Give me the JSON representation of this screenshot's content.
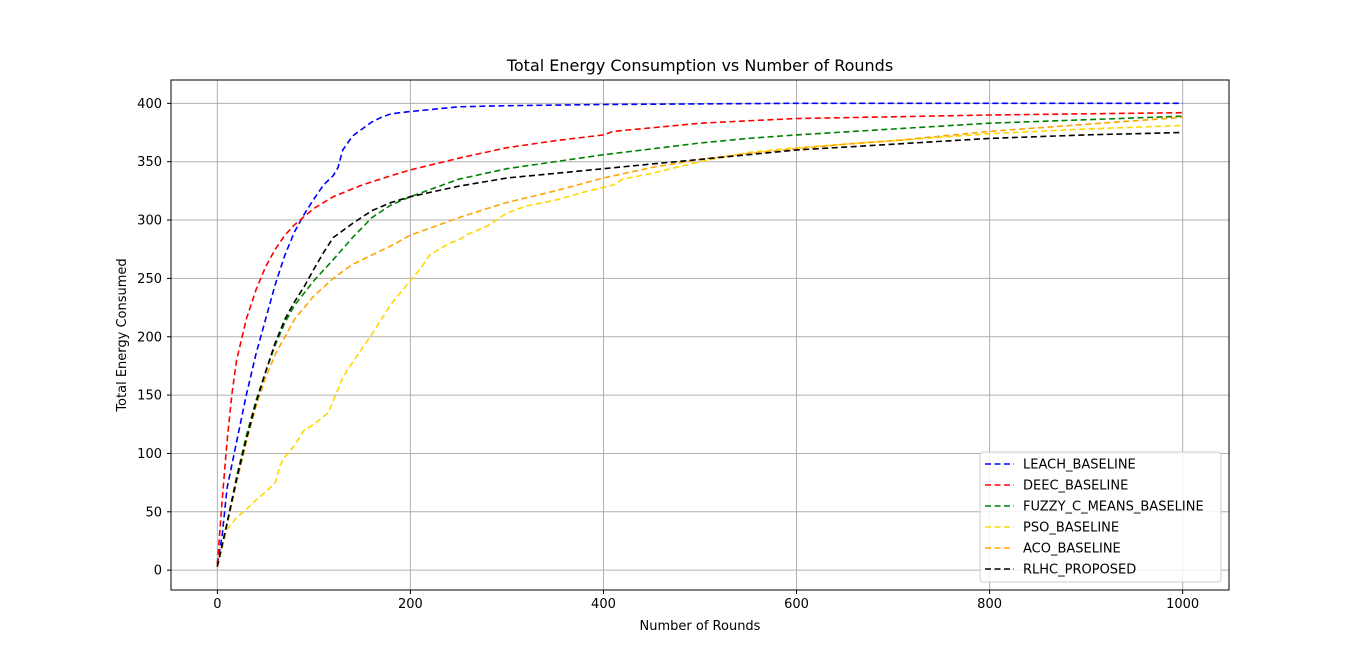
{
  "chart_data": {
    "type": "line",
    "title": "Total Energy Consumption vs Number of Rounds",
    "xlabel": "Number of Rounds",
    "ylabel": "Total Energy Consumed",
    "xlim": [
      -48,
      1048
    ],
    "ylim": [
      -17,
      420
    ],
    "xticks": [
      "0",
      "200",
      "400",
      "600",
      "800",
      "1000"
    ],
    "yticks": [
      "0",
      "50",
      "100",
      "150",
      "200",
      "250",
      "300",
      "350",
      "400"
    ],
    "grid": true,
    "legend_position": "bottom-right",
    "line_style": "dashed",
    "series": [
      {
        "name": "LEACH_BASELINE",
        "color": "#0000ff",
        "points": [
          [
            0,
            5
          ],
          [
            5,
            30
          ],
          [
            10,
            70
          ],
          [
            20,
            110
          ],
          [
            30,
            150
          ],
          [
            40,
            185
          ],
          [
            50,
            215
          ],
          [
            60,
            245
          ],
          [
            70,
            270
          ],
          [
            80,
            290
          ],
          [
            90,
            305
          ],
          [
            100,
            318
          ],
          [
            110,
            330
          ],
          [
            120,
            338
          ],
          [
            125,
            345
          ],
          [
            130,
            360
          ],
          [
            140,
            372
          ],
          [
            150,
            378
          ],
          [
            160,
            384
          ],
          [
            170,
            388
          ],
          [
            180,
            391
          ],
          [
            200,
            393
          ],
          [
            250,
            397
          ],
          [
            300,
            398
          ],
          [
            400,
            399
          ],
          [
            500,
            399.5
          ],
          [
            600,
            400
          ],
          [
            700,
            400
          ],
          [
            800,
            400
          ],
          [
            900,
            400
          ],
          [
            1000,
            400
          ]
        ]
      },
      {
        "name": "DEEC_BASELINE",
        "color": "#ff0000",
        "points": [
          [
            0,
            5
          ],
          [
            5,
            60
          ],
          [
            10,
            110
          ],
          [
            15,
            150
          ],
          [
            20,
            180
          ],
          [
            30,
            215
          ],
          [
            40,
            240
          ],
          [
            50,
            260
          ],
          [
            60,
            275
          ],
          [
            70,
            287
          ],
          [
            80,
            296
          ],
          [
            100,
            310
          ],
          [
            120,
            320
          ],
          [
            150,
            330
          ],
          [
            180,
            338
          ],
          [
            200,
            343
          ],
          [
            250,
            353
          ],
          [
            300,
            362
          ],
          [
            350,
            368
          ],
          [
            400,
            373
          ],
          [
            410,
            376
          ],
          [
            450,
            379
          ],
          [
            500,
            383
          ],
          [
            550,
            385
          ],
          [
            600,
            387
          ],
          [
            700,
            388.5
          ],
          [
            800,
            390
          ],
          [
            900,
            391
          ],
          [
            1000,
            392
          ]
        ]
      },
      {
        "name": "FUZZY_C_MEANS_BASELINE",
        "color": "#008000",
        "points": [
          [
            0,
            3
          ],
          [
            10,
            40
          ],
          [
            20,
            80
          ],
          [
            30,
            115
          ],
          [
            40,
            145
          ],
          [
            50,
            170
          ],
          [
            60,
            193
          ],
          [
            70,
            212
          ],
          [
            80,
            227
          ],
          [
            100,
            248
          ],
          [
            120,
            266
          ],
          [
            140,
            285
          ],
          [
            160,
            302
          ],
          [
            180,
            313
          ],
          [
            200,
            320
          ],
          [
            250,
            335
          ],
          [
            300,
            344
          ],
          [
            350,
            350
          ],
          [
            400,
            356
          ],
          [
            450,
            361
          ],
          [
            500,
            366
          ],
          [
            550,
            370
          ],
          [
            600,
            373
          ],
          [
            700,
            378
          ],
          [
            800,
            383
          ],
          [
            900,
            386
          ],
          [
            1000,
            389
          ]
        ]
      },
      {
        "name": "PSO_BASELINE",
        "color": "#ffd700",
        "points": [
          [
            0,
            3
          ],
          [
            10,
            35
          ],
          [
            20,
            45
          ],
          [
            30,
            52
          ],
          [
            40,
            60
          ],
          [
            50,
            67
          ],
          [
            60,
            75
          ],
          [
            65,
            90
          ],
          [
            70,
            97
          ],
          [
            80,
            107
          ],
          [
            90,
            120
          ],
          [
            100,
            125
          ],
          [
            115,
            135
          ],
          [
            120,
            145
          ],
          [
            130,
            165
          ],
          [
            140,
            178
          ],
          [
            150,
            190
          ],
          [
            160,
            202
          ],
          [
            170,
            215
          ],
          [
            180,
            228
          ],
          [
            190,
            238
          ],
          [
            200,
            248
          ],
          [
            210,
            258
          ],
          [
            220,
            270
          ],
          [
            240,
            280
          ],
          [
            250,
            283
          ],
          [
            260,
            288
          ],
          [
            280,
            295
          ],
          [
            300,
            306
          ],
          [
            320,
            312
          ],
          [
            350,
            317
          ],
          [
            380,
            324
          ],
          [
            410,
            330
          ],
          [
            420,
            335
          ],
          [
            450,
            340
          ],
          [
            500,
            350
          ],
          [
            550,
            358
          ],
          [
            600,
            362
          ],
          [
            700,
            368
          ],
          [
            800,
            374
          ],
          [
            900,
            378
          ],
          [
            1000,
            381
          ]
        ]
      },
      {
        "name": "ACO_BASELINE",
        "color": "#ffa500",
        "points": [
          [
            0,
            3
          ],
          [
            10,
            38
          ],
          [
            20,
            75
          ],
          [
            30,
            110
          ],
          [
            40,
            140
          ],
          [
            50,
            165
          ],
          [
            60,
            185
          ],
          [
            70,
            200
          ],
          [
            80,
            215
          ],
          [
            100,
            235
          ],
          [
            120,
            250
          ],
          [
            140,
            262
          ],
          [
            160,
            270
          ],
          [
            180,
            278
          ],
          [
            200,
            287
          ],
          [
            250,
            302
          ],
          [
            280,
            310
          ],
          [
            300,
            315
          ],
          [
            350,
            325
          ],
          [
            400,
            336
          ],
          [
            450,
            345
          ],
          [
            500,
            352
          ],
          [
            550,
            357
          ],
          [
            600,
            361
          ],
          [
            650,
            365
          ],
          [
            700,
            368
          ],
          [
            800,
            376
          ],
          [
            900,
            382
          ],
          [
            1000,
            388
          ]
        ]
      },
      {
        "name": "RLHC_PROPOSED",
        "color": "#000000",
        "points": [
          [
            0,
            3
          ],
          [
            10,
            40
          ],
          [
            20,
            78
          ],
          [
            30,
            112
          ],
          [
            40,
            143
          ],
          [
            50,
            170
          ],
          [
            60,
            195
          ],
          [
            70,
            215
          ],
          [
            80,
            230
          ],
          [
            90,
            243
          ],
          [
            100,
            258
          ],
          [
            110,
            272
          ],
          [
            120,
            285
          ],
          [
            140,
            297
          ],
          [
            160,
            308
          ],
          [
            180,
            315
          ],
          [
            200,
            320
          ],
          [
            250,
            329
          ],
          [
            300,
            336
          ],
          [
            350,
            340
          ],
          [
            400,
            344
          ],
          [
            450,
            348
          ],
          [
            500,
            352
          ],
          [
            550,
            356
          ],
          [
            600,
            360
          ],
          [
            700,
            365
          ],
          [
            800,
            370
          ],
          [
            900,
            373
          ],
          [
            1000,
            375
          ]
        ]
      }
    ]
  }
}
